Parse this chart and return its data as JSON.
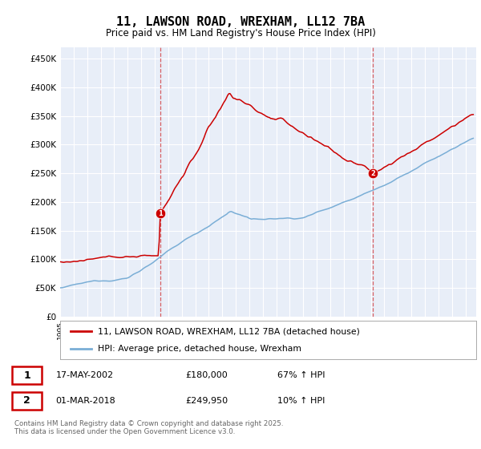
{
  "title": "11, LAWSON ROAD, WREXHAM, LL12 7BA",
  "subtitle": "Price paid vs. HM Land Registry's House Price Index (HPI)",
  "red_label": "11, LAWSON ROAD, WREXHAM, LL12 7BA (detached house)",
  "blue_label": "HPI: Average price, detached house, Wrexham",
  "red_color": "#cc0000",
  "blue_color": "#7aaed6",
  "marker1_date": "17-MAY-2002",
  "marker1_price": 180000,
  "marker1_hpi_price": 180000,
  "marker1_note": "67% ↑ HPI",
  "marker1_year": 2002.38,
  "marker2_date": "01-MAR-2018",
  "marker2_price": 249950,
  "marker2_hpi_price": 249950,
  "marker2_note": "10% ↑ HPI",
  "marker2_year": 2018.17,
  "ylim_max": 470000,
  "yticks": [
    0,
    50000,
    100000,
    150000,
    200000,
    250000,
    300000,
    350000,
    400000,
    450000
  ],
  "xlim_start": 1995.0,
  "xlim_end": 2025.8,
  "footnote": "Contains HM Land Registry data © Crown copyright and database right 2025.\nThis data is licensed under the Open Government Licence v3.0.",
  "background_color": "#e8eef8"
}
